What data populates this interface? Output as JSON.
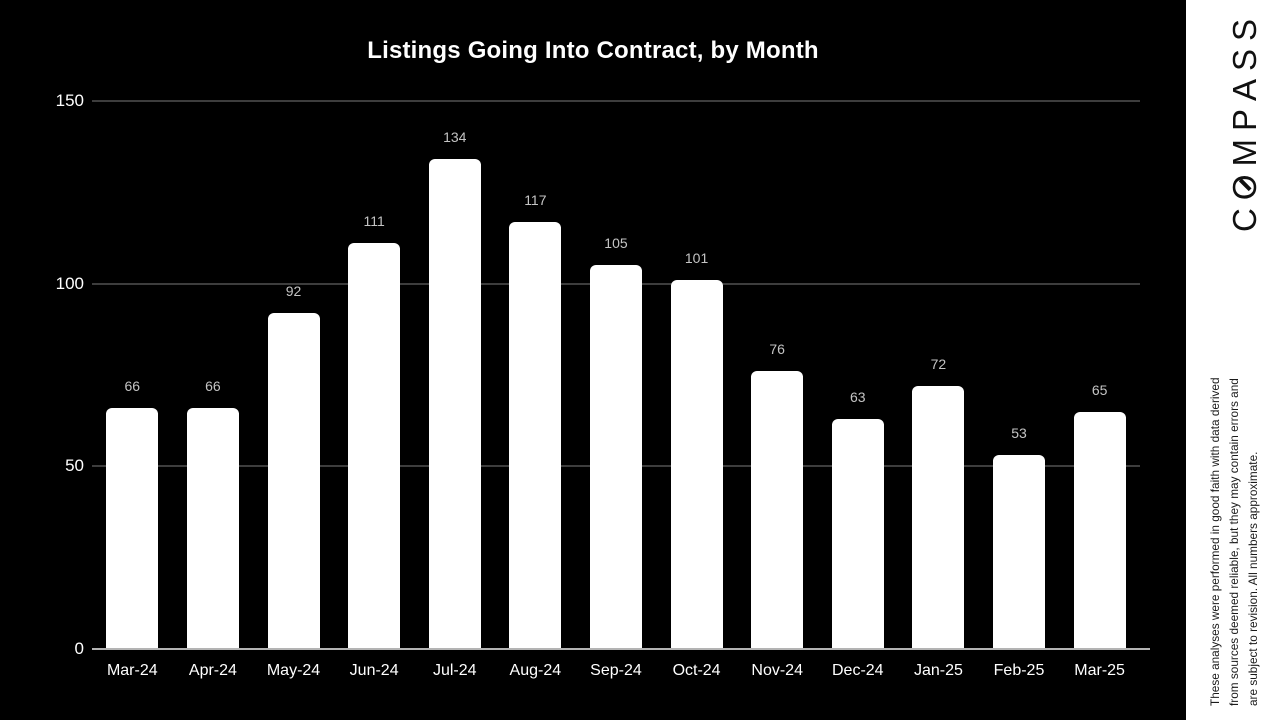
{
  "chart_data": {
    "type": "bar",
    "title": "Listings Going Into Contract, by Month",
    "categories": [
      "Mar-24",
      "Apr-24",
      "May-24",
      "Jun-24",
      "Jul-24",
      "Aug-24",
      "Sep-24",
      "Oct-24",
      "Nov-24",
      "Dec-24",
      "Jan-25",
      "Feb-25",
      "Mar-25"
    ],
    "values": [
      66,
      66,
      92,
      111,
      134,
      117,
      105,
      101,
      76,
      63,
      72,
      53,
      65
    ],
    "xlabel": "",
    "ylabel": "",
    "ylim": [
      0,
      150
    ],
    "yticks": [
      0,
      50,
      100,
      150
    ],
    "grid": true,
    "legend": false,
    "background_color": "#000000",
    "bar_color": "#ffffff",
    "value_label_color": "#c4c4c4",
    "axis_label_color": "#ffffff",
    "gridline_color": "#3d3d3d",
    "baseline_color": "#b3b3b3"
  },
  "sidebar": {
    "brand_letters": [
      "C",
      "O",
      "M",
      "P",
      "A",
      "S",
      "S"
    ],
    "disclaimer_lines": [
      "These analyses were performed in good faith with data derived",
      "from sources deemed reliable, but they may contain errors and",
      "are subject to revision. All numbers approximate."
    ]
  }
}
